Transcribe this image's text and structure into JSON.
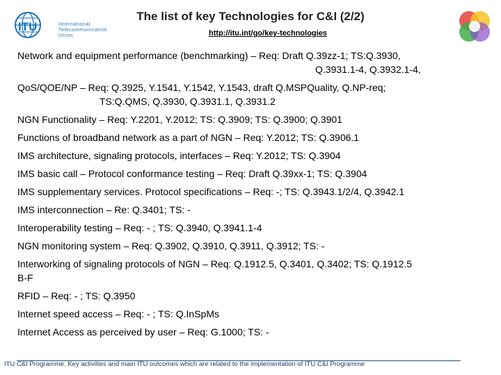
{
  "logo": {
    "abbr": "ITU",
    "lines": [
      "International",
      "Telecommunication",
      "Union"
    ]
  },
  "header": {
    "title": "The list of key Technologies for C&I (2/2)",
    "url": "http://itu.int/go/key-technologies"
  },
  "items": [
    {
      "line1": "Network and equipment performance (benchmarking) – Req: Draft Q.39zz-1;  TS:Q.3930,",
      "line2": "Q.3931.1-4, Q.3932.1-4,",
      "indent": "indent1"
    },
    {
      "line1": "QoS/QOE/NP – Req: Q.3925, Y.1541, Y.1542, Y.1543, draft Q.MSPQuality, Q.NP-req;",
      "line2": "TS:Q.QMS, Q.3930, Q.3931.1, Q.3931.2",
      "indent": "indent2"
    },
    {
      "line1": "NGN Functionality – Req: Y.2201, Y.2012; TS: Q.3909; TS: Q.3900; Q.3901"
    },
    {
      "line1": "Functions of broadband network as a part of NGN – Req: Y.2012; TS: Q.3906.1"
    },
    {
      "line1": "IMS architecture, signaling protocols, interfaces – Req: Y.2012; TS: Q.3904"
    },
    {
      "line1": "IMS basic call – Protocol conformance testing – Req: Draft Q.39xx-1; TS: Q.3904"
    },
    {
      "line1": "IMS supplementary services. Protocol specifications – Req: -; TS: Q.3943.1/2/4, Q.3942.1"
    },
    {
      "line1": "IMS interconnection – Re: Q.3401; TS: -"
    },
    {
      "line1": "Interoperability testing – Req: - ; TS: Q.3940, Q.3941.1-4"
    },
    {
      "line1": "NGN monitoring system – Req: Q.3902, Q.3910, Q.3911, Q.3912; TS: -"
    },
    {
      "line1": "Interworking of signaling protocols of NGN – Req: Q.1912.5, Q.3401, Q.3402; TS: Q.1912.5",
      "line2": "B-F",
      "indent": ""
    },
    {
      "line1": "RFID – Req: - ; TS: Q.3950"
    },
    {
      "line1": "Internet speed access – Req: - ; TS: Q.InSpMs"
    },
    {
      "line1": "Internet Access as perceived by user – Req: G.1000; TS: -"
    }
  ],
  "footer": "ITU C&I Programme. Key activities and main ITU outcomes which are related to the implementation of ITU C&I Programme",
  "colors": {
    "itu_blue": "#1a73b8",
    "footer_blue": "#1a3d66"
  }
}
